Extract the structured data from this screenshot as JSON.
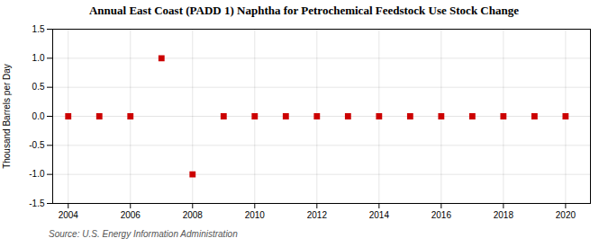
{
  "chart_data": {
    "type": "scatter",
    "title": "Annual East Coast (PADD 1) Naphtha for Petrochemical Feedstock Use Stock Change",
    "ylabel": "Thousand Barrels per Day",
    "annotation": "Source: U.S. Energy Information Administration",
    "x": [
      2004,
      2005,
      2006,
      2007,
      2008,
      2009,
      2010,
      2011,
      2012,
      2013,
      2014,
      2015,
      2016,
      2017,
      2018,
      2019,
      2020
    ],
    "values": [
      0.0,
      0.0,
      0.0,
      1.0,
      -1.0,
      0.0,
      0.0,
      0.0,
      0.0,
      0.0,
      0.0,
      0.0,
      0.0,
      0.0,
      0.0,
      0.0,
      0.0
    ],
    "color": "#cc0000",
    "marker": "square",
    "xlim": [
      2003.5,
      2020.8
    ],
    "xticks": [
      2004,
      2006,
      2008,
      2010,
      2012,
      2014,
      2016,
      2018,
      2020
    ],
    "ylim": [
      -1.5,
      1.5
    ],
    "yticks": [
      -1.5,
      {
        "value": -1.0,
        "label": "-1.0"
      },
      -0.5,
      {
        "value": 0.0,
        "label": "0.0"
      },
      0.5,
      {
        "value": 1.0,
        "label": "1.0"
      },
      1.5
    ],
    "grid": true
  }
}
